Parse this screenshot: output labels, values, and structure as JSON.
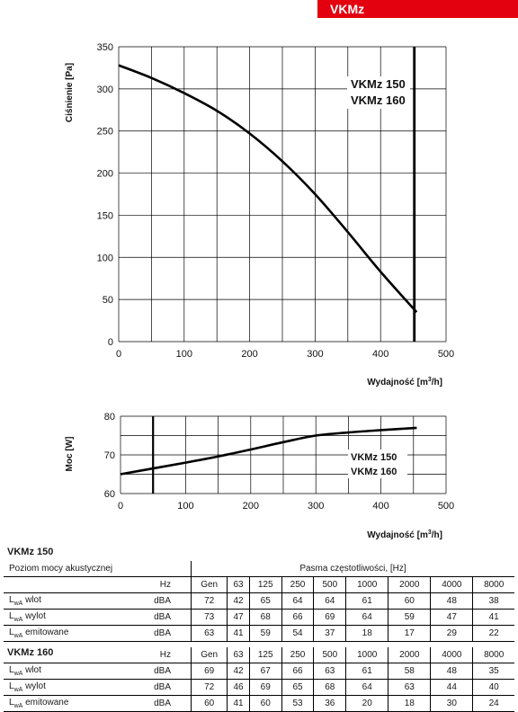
{
  "badge": "VKMz",
  "chart_data": [
    {
      "type": "line",
      "ylabel": "Ciśnienie [Pa]",
      "xlabel": "Wydajność [m³/h]",
      "xlabel_main": "Wydajność [m",
      "xlabel_sup": "3",
      "xlabel_tail": "/h]",
      "xlim": [
        0,
        500
      ],
      "ylim": [
        0,
        350
      ],
      "xticks": [
        0,
        100,
        200,
        300,
        400,
        500
      ],
      "yticks": [
        0,
        50,
        100,
        150,
        200,
        250,
        300,
        350
      ],
      "grid": true,
      "x": [
        0,
        50,
        100,
        150,
        200,
        250,
        300,
        350,
        400,
        455
      ],
      "y": [
        328,
        313,
        295,
        274,
        247,
        214,
        175,
        130,
        83,
        35
      ],
      "vline_x": 452,
      "annotations": [
        "VKMz 150",
        "VKMz 160"
      ]
    },
    {
      "type": "line",
      "ylabel": "Moc [W]",
      "xlabel": "Wydajność [m³/h]",
      "xlabel_main": "Wydajność [m",
      "xlabel_sup": "3",
      "xlabel_tail": "/h]",
      "xlim": [
        0,
        500
      ],
      "ylim": [
        60,
        80
      ],
      "xticks": [
        0,
        100,
        200,
        300,
        400,
        500
      ],
      "yticks": [
        60,
        70,
        80
      ],
      "grid": true,
      "x": [
        0,
        50,
        100,
        150,
        200,
        250,
        300,
        350,
        400,
        455
      ],
      "y": [
        65,
        66.5,
        68,
        69.6,
        71.4,
        73.3,
        75,
        75.8,
        76.4,
        77
      ],
      "vline_x": 50,
      "annotations": [
        "VKMz 150",
        "VKMz 160"
      ]
    }
  ],
  "table150": {
    "title": "VKMz 150",
    "col_label": "Poziom mocy akustycznej",
    "band_label": "Pasma częstotliwości, [Hz]",
    "hz": "Hz",
    "bands": [
      "Gen",
      "63",
      "125",
      "250",
      "500",
      "1000",
      "2000",
      "4000",
      "8000"
    ],
    "rows": [
      {
        "lw": "L",
        "sub": "wA",
        "name": " wlot",
        "unit": "dBA",
        "values": [
          "72",
          "42",
          "65",
          "64",
          "64",
          "61",
          "60",
          "48",
          "38"
        ]
      },
      {
        "lw": "L",
        "sub": "wA",
        "name": " wylot",
        "unit": "dBA",
        "values": [
          "73",
          "47",
          "68",
          "66",
          "69",
          "64",
          "59",
          "47",
          "41"
        ]
      },
      {
        "lw": "L",
        "sub": "wA",
        "name": " emitowane",
        "unit": "dBA",
        "values": [
          "63",
          "41",
          "59",
          "54",
          "37",
          "18",
          "17",
          "29",
          "22"
        ]
      }
    ]
  },
  "table160": {
    "title": "VKMz 160",
    "hz": "Hz",
    "bands": [
      "Gen",
      "63",
      "125",
      "250",
      "500",
      "1000",
      "2000",
      "4000",
      "8000"
    ],
    "rows": [
      {
        "lw": "L",
        "sub": "wA",
        "name": " wlot",
        "unit": "dBA",
        "values": [
          "69",
          "42",
          "67",
          "66",
          "63",
          "61",
          "58",
          "48",
          "35"
        ]
      },
      {
        "lw": "L",
        "sub": "wA",
        "name": " wylot",
        "unit": "dBA",
        "values": [
          "72",
          "46",
          "69",
          "65",
          "68",
          "64",
          "63",
          "44",
          "40"
        ]
      },
      {
        "lw": "L",
        "sub": "wA",
        "name": " emitowane",
        "unit": "dBA",
        "values": [
          "60",
          "41",
          "60",
          "53",
          "36",
          "20",
          "18",
          "30",
          "24"
        ]
      }
    ]
  }
}
